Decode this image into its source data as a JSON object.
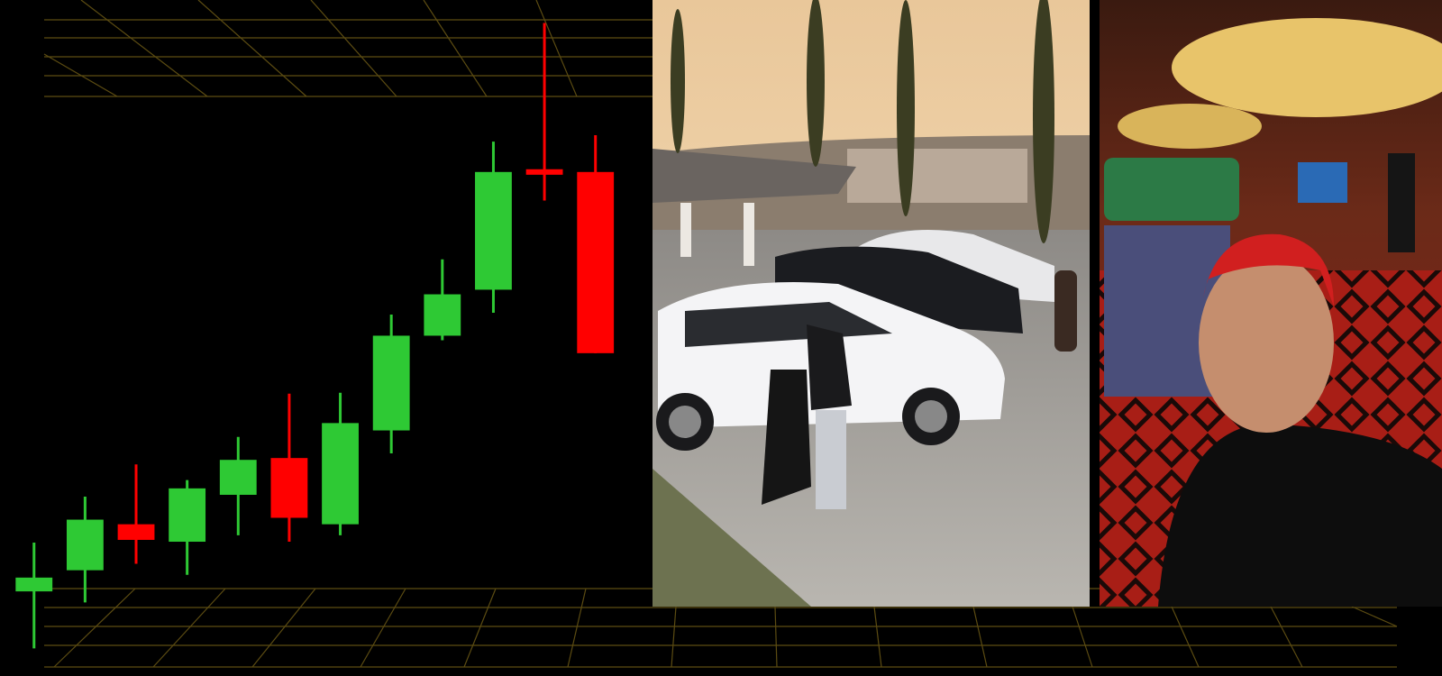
{
  "chart_data": {
    "type": "candlestick",
    "categories": [
      null,
      null,
      null,
      null,
      null,
      null,
      null,
      null,
      null,
      null,
      null,
      null
    ],
    "open": [
      92,
      115,
      165,
      146,
      197,
      237,
      165,
      267,
      370,
      420,
      551,
      548
    ],
    "high": [
      145,
      195,
      230,
      213,
      260,
      307,
      308,
      393,
      453,
      581,
      710,
      588
    ],
    "low": [
      30,
      80,
      122,
      110,
      153,
      146,
      153,
      242,
      365,
      395,
      517,
      351
    ],
    "close": [
      107,
      170,
      148,
      204,
      235,
      172,
      275,
      370,
      415,
      548,
      545,
      351
    ],
    "up_color": "#2ec934",
    "down_color": "#ff0000",
    "ylim": [
      0,
      735
    ]
  }
}
